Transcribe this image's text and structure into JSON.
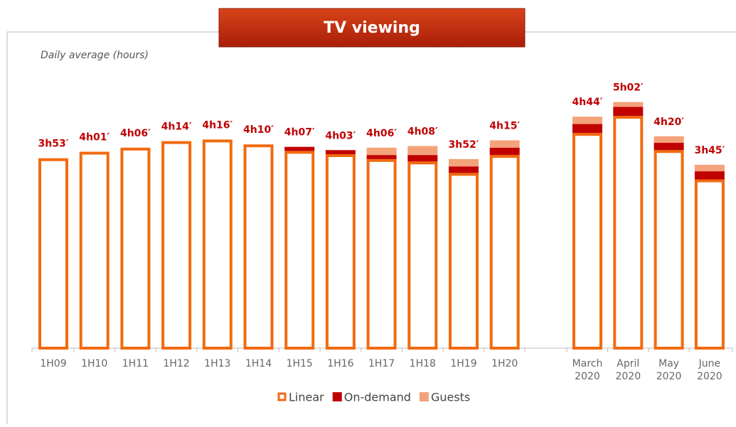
{
  "chart_data": {
    "type": "stacked_bar",
    "title": "TV viewing",
    "subtitle": "Daily average (hours)",
    "categories": [
      "1H09",
      "1H10",
      "1H11",
      "1H12",
      "1H13",
      "1H14",
      "1H15",
      "1H16",
      "1H17",
      "1H18",
      "1H19",
      "1H20",
      "March 2020",
      "April 2020",
      "May 2020",
      "June 2020"
    ],
    "series": [
      {
        "name": "Linear",
        "color": "#f26a10",
        "values": [
          233,
          241,
          246,
          254,
          256,
          250,
          242,
          238,
          232,
          229,
          215,
          237,
          264,
          285,
          243,
          207
        ]
      },
      {
        "name": "On-demand",
        "color": "#c00000",
        "values": [
          null,
          null,
          null,
          null,
          null,
          null,
          5,
          5,
          5,
          8,
          8,
          9,
          11,
          11,
          9,
          10
        ]
      },
      {
        "name": "Guests",
        "color": "#f4a27a",
        "values": [
          null,
          null,
          null,
          null,
          null,
          null,
          null,
          null,
          9,
          11,
          9,
          9,
          9,
          6,
          8,
          8
        ]
      }
    ],
    "totals": {
      "values": [
        233,
        241,
        246,
        254,
        256,
        250,
        247,
        243,
        246,
        248,
        232,
        255,
        284,
        302,
        260,
        225
      ],
      "value_labels": [
        "3h53′",
        "4h01′",
        "4h06′",
        "4h14′",
        "4h16′",
        "4h10′",
        "4h07′",
        "4h03′",
        "4h06′",
        "4h08′",
        "3h52′",
        "4h15′",
        "4h44′",
        "5h02′",
        "4h20′",
        "3h45′"
      ]
    },
    "ylim": [
      0,
      340
    ]
  }
}
